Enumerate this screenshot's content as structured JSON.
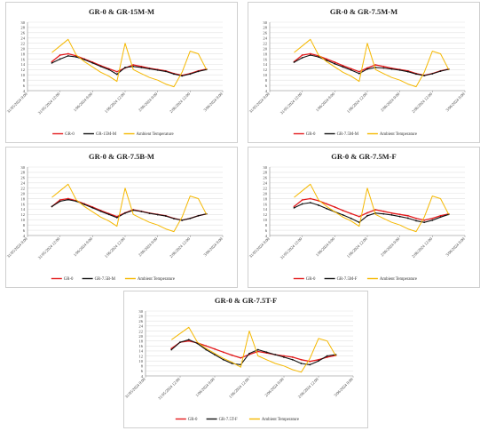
{
  "figure": {
    "x_tick_labels": [
      "31/05/2024 0:00",
      "31/05/2024 12:00",
      "1/06/2024 0:00",
      "1/06/2024 12:00",
      "2/06/2024 0:00",
      "2/06/2024 12:00",
      "3/06/2024 0:00"
    ],
    "y_tick_labels": [
      "4",
      "6",
      "8",
      "10",
      "12",
      "14",
      "16",
      "18",
      "20",
      "22",
      "24",
      "26",
      "28",
      "30"
    ],
    "colors": {
      "gr0": "#e31a1c",
      "config": "#111111",
      "ambient": "#f5b800",
      "grid": "#e2e2e2"
    }
  },
  "chart_data": [
    {
      "type": "line",
      "title": "GR-0 & GR-15M-M",
      "x": [
        "31/05/2024 9:00",
        "31/05/2024 12:00",
        "31/05/2024 15:00",
        "31/05/2024 18:00",
        "31/05/2024 21:00",
        "1/06/2024 0:00",
        "1/06/2024 3:00",
        "1/06/2024 6:00",
        "1/06/2024 9:00",
        "1/06/2024 12:00",
        "1/06/2024 15:00",
        "1/06/2024 18:00",
        "1/06/2024 21:00",
        "2/06/2024 0:00",
        "2/06/2024 3:00",
        "2/06/2024 6:00",
        "2/06/2024 9:00",
        "2/06/2024 12:00",
        "2/06/2024 15:00",
        "2/06/2024 18:00"
      ],
      "ylim": [
        4,
        30
      ],
      "legend": "bottom",
      "series": [
        {
          "name": "GR-0",
          "values": [
            15,
            17.5,
            18,
            17.2,
            16,
            14.8,
            13.5,
            12.3,
            11.2,
            12.6,
            13.8,
            13.2,
            12.5,
            12.0,
            11.5,
            10.5,
            9.8,
            10.5,
            11.5,
            12.2
          ]
        },
        {
          "name": "GR-15M-M",
          "values": [
            14.5,
            16,
            17.2,
            16.8,
            15.8,
            14.5,
            13.2,
            12,
            10.2,
            12.8,
            13.2,
            12.8,
            12.3,
            11.8,
            11.3,
            10.3,
            9.6,
            10.3,
            11.3,
            12
          ]
        },
        {
          "name": "Ambient Temperature",
          "values": [
            18.5,
            21,
            23.5,
            17.5,
            15,
            13,
            11,
            9.5,
            7.5,
            22,
            12,
            10.5,
            9,
            8,
            6.5,
            5.5,
            11,
            19,
            18,
            12
          ]
        }
      ]
    },
    {
      "type": "line",
      "title": "GR-0 & GR-7.5M-M",
      "x": [
        "31/05/2024 9:00",
        "31/05/2024 12:00",
        "31/05/2024 15:00",
        "31/05/2024 18:00",
        "31/05/2024 21:00",
        "1/06/2024 0:00",
        "1/06/2024 3:00",
        "1/06/2024 6:00",
        "1/06/2024 9:00",
        "1/06/2024 12:00",
        "1/06/2024 15:00",
        "1/06/2024 18:00",
        "1/06/2024 21:00",
        "2/06/2024 0:00",
        "2/06/2024 3:00",
        "2/06/2024 6:00",
        "2/06/2024 9:00",
        "2/06/2024 12:00",
        "2/06/2024 15:00",
        "2/06/2024 18:00"
      ],
      "ylim": [
        4,
        30
      ],
      "legend": "bottom",
      "series": [
        {
          "name": "GR-0",
          "values": [
            15,
            17.5,
            18,
            17.2,
            16,
            14.8,
            13.5,
            12.3,
            11.2,
            12.6,
            13.8,
            13.2,
            12.5,
            12.0,
            11.5,
            10.5,
            9.8,
            10.5,
            11.5,
            12.2
          ]
        },
        {
          "name": "GR-7.5M-M",
          "values": [
            14.8,
            16.5,
            17.5,
            16.8,
            15.5,
            14.2,
            13,
            11.8,
            10.5,
            12.2,
            12.8,
            12.6,
            12.2,
            11.8,
            11.2,
            10.3,
            9.7,
            10.4,
            11.4,
            12.1
          ]
        },
        {
          "name": "Ambient Temperature",
          "values": [
            18.5,
            21,
            23.5,
            17.5,
            15,
            13,
            11,
            9.5,
            7.5,
            22,
            12,
            10.5,
            9,
            8,
            6.5,
            5.5,
            11,
            19,
            18,
            12
          ]
        }
      ]
    },
    {
      "type": "line",
      "title": "GR-0 & GR-7.5B-M",
      "x": [
        "31/05/2024 9:00",
        "31/05/2024 12:00",
        "31/05/2024 15:00",
        "31/05/2024 18:00",
        "31/05/2024 21:00",
        "1/06/2024 0:00",
        "1/06/2024 3:00",
        "1/06/2024 6:00",
        "1/06/2024 9:00",
        "1/06/2024 12:00",
        "1/06/2024 15:00",
        "1/06/2024 18:00",
        "1/06/2024 21:00",
        "2/06/2024 0:00",
        "2/06/2024 3:00",
        "2/06/2024 6:00",
        "2/06/2024 9:00",
        "2/06/2024 12:00",
        "2/06/2024 15:00",
        "2/06/2024 18:00"
      ],
      "ylim": [
        4,
        30
      ],
      "legend": "bottom",
      "series": [
        {
          "name": "GR-0",
          "values": [
            15,
            17.5,
            18,
            17.2,
            16,
            14.8,
            13.5,
            12.3,
            11.2,
            12.6,
            13.8,
            13.2,
            12.5,
            12.0,
            11.5,
            10.5,
            9.8,
            10.5,
            11.5,
            12.2
          ]
        },
        {
          "name": "GR-7.5B-M",
          "values": [
            15,
            17,
            17.6,
            17,
            15.8,
            14.5,
            13.2,
            12,
            10.8,
            12.5,
            13.6,
            13.1,
            12.4,
            11.9,
            11.4,
            10.4,
            9.8,
            10.5,
            11.5,
            12.2
          ]
        },
        {
          "name": "Ambient Temperature",
          "values": [
            18.5,
            21,
            23.5,
            17.5,
            15,
            13,
            11,
            9.5,
            7.5,
            22,
            12,
            10.5,
            9,
            8,
            6.5,
            5.5,
            11,
            19,
            18,
            12
          ]
        }
      ]
    },
    {
      "type": "line",
      "title": "GR-0 & GR-7.5M-F",
      "x": [
        "31/05/2024 9:00",
        "31/05/2024 12:00",
        "31/05/2024 15:00",
        "31/05/2024 18:00",
        "31/05/2024 21:00",
        "1/06/2024 0:00",
        "1/06/2024 3:00",
        "1/06/2024 6:00",
        "1/06/2024 9:00",
        "1/06/2024 12:00",
        "1/06/2024 15:00",
        "1/06/2024 18:00",
        "1/06/2024 21:00",
        "2/06/2024 0:00",
        "2/06/2024 3:00",
        "2/06/2024 6:00",
        "2/06/2024 9:00",
        "2/06/2024 12:00",
        "2/06/2024 15:00",
        "2/06/2024 18:00"
      ],
      "ylim": [
        4,
        30
      ],
      "legend": "bottom",
      "series": [
        {
          "name": "GR-0",
          "values": [
            15,
            17.5,
            18,
            17.2,
            16,
            14.8,
            13.5,
            12.3,
            11.2,
            12.6,
            13.8,
            13.2,
            12.5,
            12.0,
            11.5,
            10.5,
            9.8,
            10.5,
            11.5,
            12.2
          ]
        },
        {
          "name": "GR-7.5M-F",
          "values": [
            14.5,
            16,
            16.5,
            15.5,
            14.2,
            13,
            11.8,
            10.5,
            9,
            11.5,
            12.5,
            12.2,
            11.8,
            11.2,
            10.6,
            9.6,
            9.0,
            9.8,
            11,
            12
          ]
        },
        {
          "name": "Ambient Temperature",
          "values": [
            18.5,
            21,
            23.5,
            17.5,
            15,
            13,
            11,
            9.5,
            7.5,
            22,
            12,
            10.5,
            9,
            8,
            6.5,
            5.5,
            11,
            19,
            18,
            12
          ]
        }
      ]
    },
    {
      "type": "line",
      "title": "GR-0 & GR-7.5T-F",
      "x": [
        "31/05/2024 9:00",
        "31/05/2024 12:00",
        "31/05/2024 15:00",
        "31/05/2024 18:00",
        "31/05/2024 21:00",
        "1/06/2024 0:00",
        "1/06/2024 3:00",
        "1/06/2024 6:00",
        "1/06/2024 9:00",
        "1/06/2024 12:00",
        "1/06/2024 15:00",
        "1/06/2024 18:00",
        "1/06/2024 21:00",
        "2/06/2024 0:00",
        "2/06/2024 3:00",
        "2/06/2024 6:00",
        "2/06/2024 9:00",
        "2/06/2024 12:00",
        "2/06/2024 15:00",
        "2/06/2024 18:00"
      ],
      "ylim": [
        4,
        30
      ],
      "legend": "bottom",
      "series": [
        {
          "name": "GR-0",
          "values": [
            15,
            17.5,
            18,
            17.2,
            16,
            14.8,
            13.5,
            12.3,
            11.2,
            12.6,
            13.8,
            13.2,
            12.5,
            12.0,
            11.5,
            10.5,
            9.8,
            10.5,
            11.5,
            12.2
          ]
        },
        {
          "name": "GR-7.5T-F",
          "values": [
            14.5,
            17.5,
            18.5,
            17,
            14.5,
            12.5,
            10.5,
            9,
            8.5,
            13,
            14.5,
            13.5,
            12.5,
            11.5,
            10.5,
            9,
            8.5,
            10,
            12,
            12.5
          ]
        },
        {
          "name": "Ambient Temperature",
          "values": [
            18.5,
            21,
            23.5,
            17.5,
            15,
            13,
            11,
            9.5,
            7.5,
            22,
            12,
            10.5,
            9,
            8,
            6.5,
            5.5,
            11,
            19,
            18,
            12
          ]
        }
      ]
    }
  ]
}
